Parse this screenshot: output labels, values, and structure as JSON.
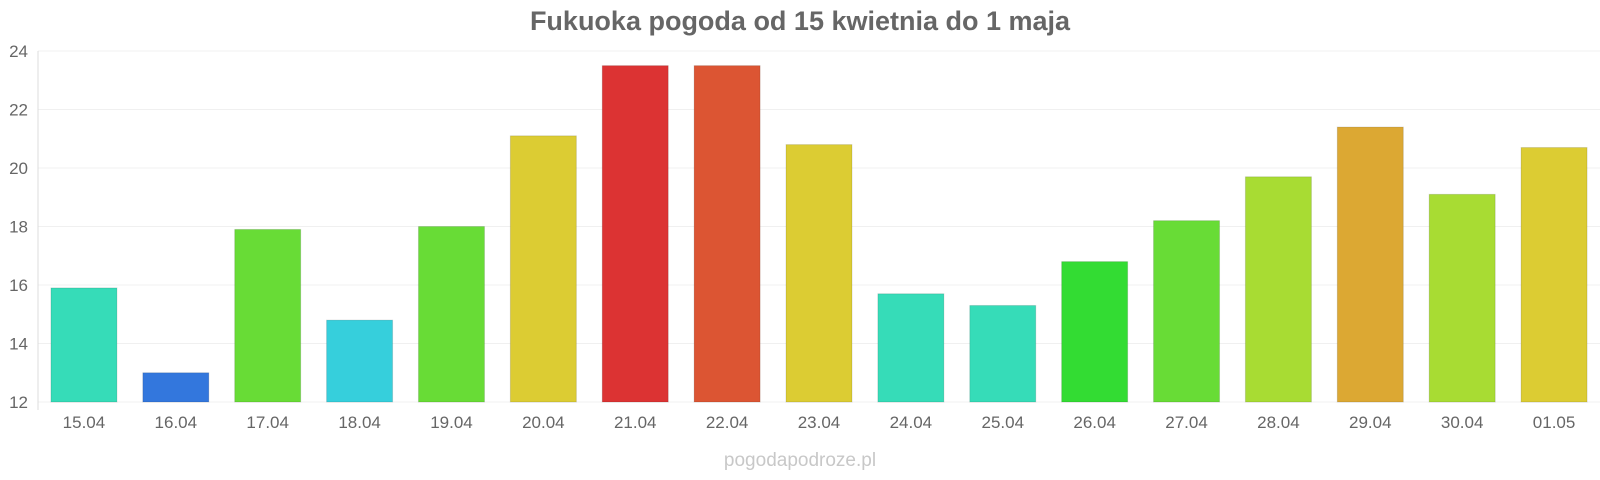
{
  "chart_data": {
    "type": "bar",
    "title": "Fukuoka pogoda od 15 kwietnia do 1 maja",
    "xlabel": "",
    "ylabel": "",
    "ylim": [
      12,
      24
    ],
    "yticks": [
      "12",
      "14",
      "16",
      "18",
      "20",
      "22",
      "24"
    ],
    "grid": true,
    "categories": [
      "15.04",
      "16.04",
      "17.04",
      "18.04",
      "19.04",
      "20.04",
      "21.04",
      "22.04",
      "23.04",
      "24.04",
      "25.04",
      "26.04",
      "27.04",
      "28.04",
      "29.04",
      "30.04",
      "01.05"
    ],
    "values": [
      15.9,
      13.0,
      17.9,
      14.8,
      18.0,
      21.1,
      23.5,
      23.5,
      20.8,
      15.7,
      15.3,
      16.8,
      18.2,
      19.7,
      21.4,
      19.1,
      20.7
    ],
    "colors": [
      "#36dcb8",
      "#3377dd",
      "#68dc36",
      "#36cfdc",
      "#68dc36",
      "#dccc33",
      "#dc3333",
      "#dc5533",
      "#dccc33",
      "#36dcb8",
      "#36dcb8",
      "#33dc33",
      "#68dc36",
      "#a8dc33",
      "#dca833",
      "#a8dc33",
      "#dccc33"
    ]
  },
  "watermark": "pogodapodroze.pl"
}
